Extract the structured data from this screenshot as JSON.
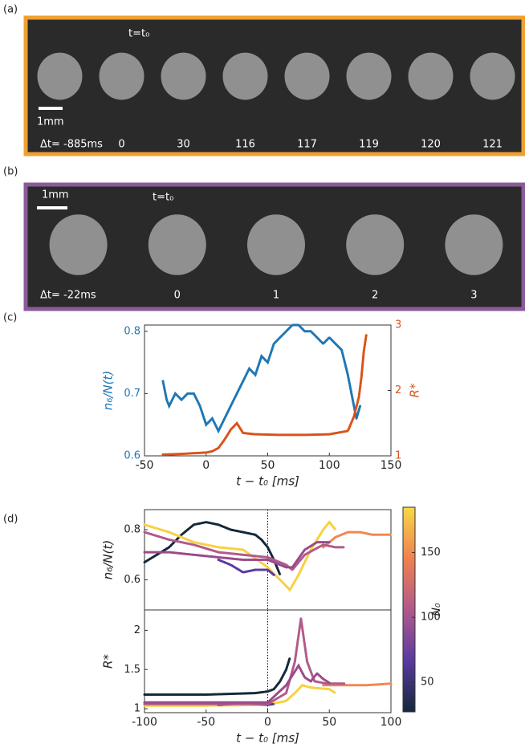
{
  "panel_a": {
    "label": "(a)",
    "t0": "t=t₀",
    "scale": "1mm",
    "times": [
      "Δt= -885ms",
      "0",
      "30",
      "116",
      "117",
      "119",
      "120",
      "121"
    ]
  },
  "panel_b": {
    "label": "(b)",
    "t0": "t=t₀",
    "scale": "1mm",
    "times": [
      "Δt= -22ms",
      "0",
      "1",
      "2",
      "3"
    ]
  },
  "panel_c": {
    "label": "(c)"
  },
  "panel_d": {
    "label": "(d)"
  },
  "chart_data": [
    {
      "type": "line",
      "xlabel": "t − t₀ [ms]",
      "ylabel": "n₆/N(t)",
      "y2label": "R*",
      "xlim": [
        -50,
        150
      ],
      "xticks": [
        -50,
        0,
        50,
        100,
        150
      ],
      "ylim": [
        0.6,
        0.81
      ],
      "yticks": [
        0.6,
        0.7,
        0.8
      ],
      "y2lim": [
        1,
        3
      ],
      "y2ticks": [
        1,
        2,
        3
      ],
      "series": [
        {
          "color": "#1f77b4",
          "x": [
            -35,
            -32,
            -30,
            -25,
            -20,
            -15,
            -10,
            -5,
            0,
            5,
            10,
            15,
            20,
            25,
            30,
            35,
            40,
            45,
            50,
            55,
            60,
            65,
            70,
            75,
            80,
            85,
            90,
            95,
            100,
            105,
            110,
            115,
            120,
            122,
            125
          ],
          "values": [
            0.72,
            0.69,
            0.68,
            0.7,
            0.69,
            0.7,
            0.7,
            0.68,
            0.65,
            0.66,
            0.64,
            0.66,
            0.68,
            0.7,
            0.72,
            0.74,
            0.73,
            0.76,
            0.75,
            0.78,
            0.79,
            0.8,
            0.81,
            0.81,
            0.8,
            0.8,
            0.79,
            0.78,
            0.79,
            0.78,
            0.77,
            0.73,
            0.68,
            0.66,
            0.68
          ]
        },
        {
          "color": "#d95319",
          "axis": "y2",
          "x": [
            -35,
            -20,
            -10,
            0,
            5,
            10,
            15,
            20,
            25,
            30,
            40,
            60,
            80,
            100,
            115,
            120,
            124,
            126,
            128,
            130
          ],
          "values": [
            1.02,
            1.03,
            1.04,
            1.05,
            1.07,
            1.12,
            1.25,
            1.4,
            1.5,
            1.35,
            1.33,
            1.32,
            1.32,
            1.33,
            1.38,
            1.6,
            1.9,
            2.2,
            2.6,
            2.85
          ]
        }
      ]
    },
    {
      "type": "line",
      "ylabel": "n₆/N(t)",
      "xlim": [
        -100,
        100
      ],
      "ylim": [
        0.48,
        0.88
      ],
      "yticks": [
        0.6,
        0.8
      ],
      "colorbar": {
        "label": "N₀",
        "lim": [
          27,
          185
        ],
        "ticks": [
          50,
          100,
          150
        ],
        "colors": [
          "#14283a",
          "#5a3aa0",
          "#b05a8a",
          "#f08050",
          "#f8d848"
        ]
      },
      "series": [
        {
          "color": "#14283a",
          "x": [
            -100,
            -90,
            -80,
            -70,
            -60,
            -50,
            -40,
            -30,
            -20,
            -10,
            -5,
            0,
            5,
            10
          ],
          "values": [
            0.67,
            0.7,
            0.73,
            0.78,
            0.82,
            0.83,
            0.82,
            0.8,
            0.79,
            0.78,
            0.76,
            0.73,
            0.68,
            0.62
          ]
        },
        {
          "color": "#f8d040",
          "x": [
            -100,
            -80,
            -60,
            -40,
            -20,
            0,
            10,
            18,
            25,
            35,
            45,
            50,
            55
          ],
          "values": [
            0.82,
            0.79,
            0.75,
            0.73,
            0.72,
            0.65,
            0.6,
            0.56,
            0.62,
            0.72,
            0.8,
            0.83,
            0.8
          ]
        },
        {
          "color": "#f08850",
          "x": [
            45,
            55,
            65,
            75,
            85,
            100
          ],
          "values": [
            0.73,
            0.77,
            0.79,
            0.79,
            0.78,
            0.78
          ]
        },
        {
          "color": "#5a3aa0",
          "x": [
            -40,
            -30,
            -20,
            -10,
            0,
            5
          ],
          "values": [
            0.68,
            0.66,
            0.63,
            0.64,
            0.64,
            0.62
          ]
        },
        {
          "color": "#b05a8a",
          "x": [
            -100,
            -80,
            -60,
            -40,
            -20,
            0,
            15,
            20,
            30,
            45,
            55,
            62
          ],
          "values": [
            0.79,
            0.76,
            0.74,
            0.71,
            0.7,
            0.69,
            0.66,
            0.64,
            0.7,
            0.74,
            0.73,
            0.73
          ]
        },
        {
          "color": "#9a4a8a",
          "x": [
            -100,
            -80,
            -60,
            -40,
            -20,
            0,
            15,
            20,
            30,
            40,
            50
          ],
          "values": [
            0.71,
            0.71,
            0.7,
            0.69,
            0.68,
            0.68,
            0.65,
            0.65,
            0.72,
            0.75,
            0.75
          ]
        }
      ]
    },
    {
      "type": "line",
      "xlabel": "t − t₀ [ms]",
      "ylabel": "R*",
      "xlim": [
        -100,
        100
      ],
      "xticks": [
        -100,
        -50,
        0,
        50,
        100
      ],
      "ylim": [
        0.95,
        2.26
      ],
      "yticks": [
        1,
        1.5,
        2
      ],
      "series": [
        {
          "color": "#14283a",
          "x": [
            -100,
            -50,
            -10,
            0,
            5,
            10,
            15,
            18
          ],
          "values": [
            1.18,
            1.18,
            1.2,
            1.22,
            1.25,
            1.35,
            1.5,
            1.65
          ]
        },
        {
          "color": "#f8d040",
          "x": [
            -100,
            -50,
            0,
            15,
            22,
            28,
            35,
            50,
            55
          ],
          "values": [
            1.04,
            1.04,
            1.05,
            1.1,
            1.2,
            1.3,
            1.27,
            1.25,
            1.2
          ]
        },
        {
          "color": "#f08850",
          "x": [
            45,
            60,
            80,
            100
          ],
          "values": [
            1.3,
            1.3,
            1.3,
            1.32
          ]
        },
        {
          "color": "#5a3aa0",
          "x": [
            -40,
            -20,
            0,
            5
          ],
          "values": [
            1.05,
            1.07,
            1.05,
            1.06
          ]
        },
        {
          "color": "#b05a8a",
          "x": [
            -100,
            0,
            15,
            22,
            27,
            32,
            38,
            48,
            62
          ],
          "values": [
            1.06,
            1.06,
            1.2,
            1.6,
            2.15,
            1.6,
            1.35,
            1.32,
            1.32
          ]
        },
        {
          "color": "#9a4a8a",
          "x": [
            -100,
            0,
            15,
            25,
            30,
            35,
            40,
            45,
            50
          ],
          "values": [
            1.08,
            1.08,
            1.3,
            1.55,
            1.4,
            1.35,
            1.45,
            1.38,
            1.33
          ]
        }
      ]
    }
  ]
}
